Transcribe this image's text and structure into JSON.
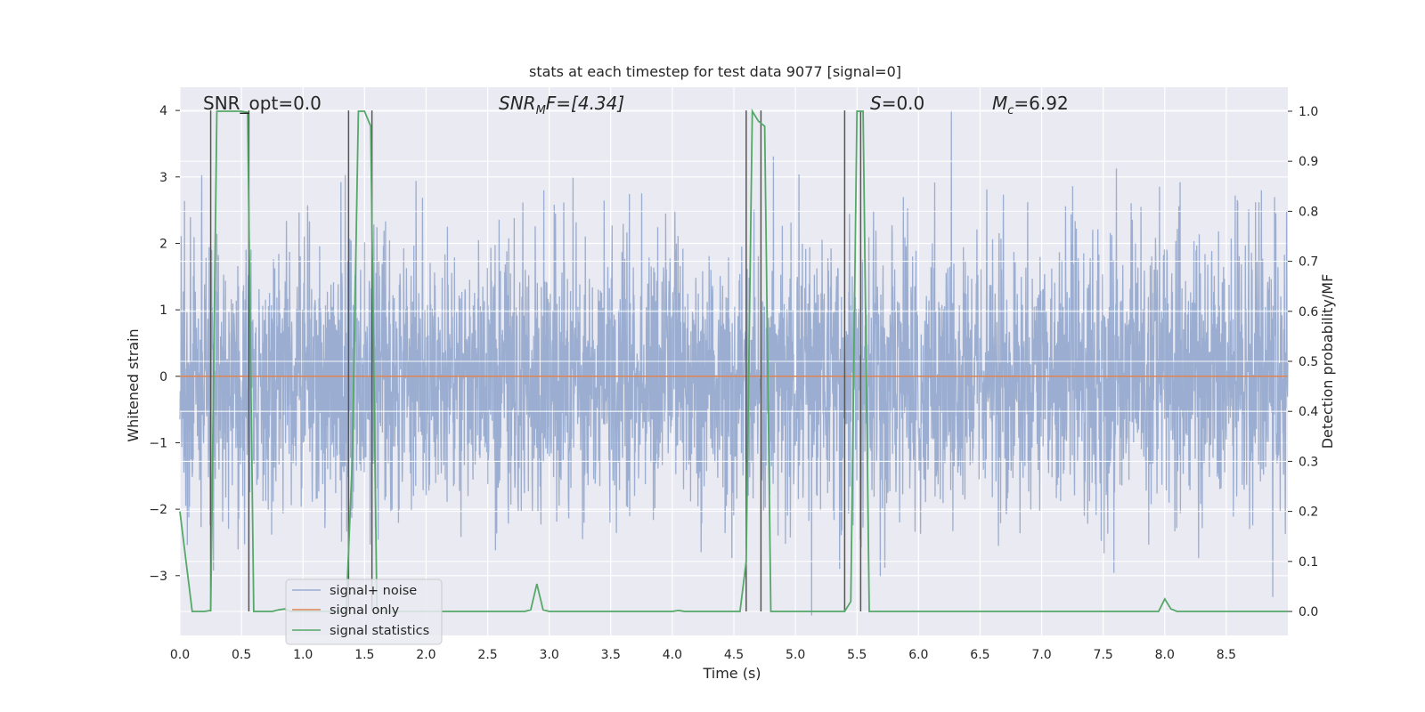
{
  "chart_data": {
    "type": "line",
    "title": "stats at each timestep for test data 9077 [signal=0]",
    "xlabel": "Time (s)",
    "ylabel": "Whitened strain",
    "y2label": "Detection probability/MF",
    "xlim": [
      0.0,
      9.0
    ],
    "ylim": [
      -3.9,
      4.35
    ],
    "y2lim": [
      -0.048,
      1.048
    ],
    "xticks": [
      "0.0",
      "0.5",
      "1.0",
      "1.5",
      "2.0",
      "2.5",
      "3.0",
      "3.5",
      "4.0",
      "4.5",
      "5.0",
      "5.5",
      "6.0",
      "6.5",
      "7.0",
      "7.5",
      "8.0",
      "8.5"
    ],
    "yticks": [
      "4",
      "3",
      "2",
      "1",
      "0",
      "−1",
      "−2",
      "−3"
    ],
    "y2ticks": [
      "1.0",
      "0.9",
      "0.8",
      "0.7",
      "0.6",
      "0.5",
      "0.4",
      "0.3",
      "0.2",
      "0.1",
      "0.0"
    ],
    "annotations": {
      "snr_opt": "SNR_opt=0.0",
      "snr_mf_base": "SNR",
      "snr_mf_sub": "M",
      "snr_mf_tail": "F=[4.34]",
      "s_base": "S",
      "s_tail": "=0.0",
      "mc_base": "M",
      "mc_sub": "c",
      "mc_tail": "=6.92"
    },
    "legend": {
      "position": "lower-left",
      "entries": [
        "signal+ noise",
        "signal only",
        "signal statistics"
      ]
    },
    "colors": {
      "noise": "#4c72b0",
      "signal": "#dd8452",
      "stats": "#55a868",
      "vlines": "#555555",
      "background": "#eaeaf2"
    },
    "series": [
      {
        "name": "signal+ noise",
        "description": "dense whitened strain noise, roughly uniform amplitude, peaks near ±3.5",
        "amplitude_std": 1.05,
        "peak_max": 4.0,
        "peak_min": -3.6
      },
      {
        "name": "signal only",
        "x": [
          0.0,
          9.0
        ],
        "y": [
          0.0,
          0.0
        ]
      },
      {
        "name": "signal statistics",
        "axis": "right",
        "x": [
          0.0,
          0.05,
          0.1,
          0.15,
          0.2,
          0.25,
          0.3,
          0.35,
          0.4,
          0.45,
          0.5,
          0.55,
          0.6,
          0.65,
          0.7,
          0.75,
          0.8,
          0.85,
          0.9,
          0.95,
          1.0,
          1.1,
          1.2,
          1.3,
          1.35,
          1.4,
          1.45,
          1.5,
          1.55,
          1.6,
          1.65,
          1.7,
          1.8,
          2.0,
          2.5,
          2.8,
          2.85,
          2.9,
          2.95,
          3.0,
          3.05,
          3.5,
          4.0,
          4.05,
          4.1,
          4.5,
          4.55,
          4.6,
          4.65,
          4.7,
          4.75,
          4.8,
          4.85,
          5.0,
          5.4,
          5.45,
          5.5,
          5.55,
          5.6,
          5.65,
          5.7,
          6.0,
          7.0,
          7.9,
          7.95,
          8.0,
          8.05,
          8.1,
          8.5,
          9.0
        ],
        "y": [
          0.2,
          0.1,
          0.0,
          0.0,
          0.0,
          0.002,
          1.0,
          1.0,
          1.0,
          1.0,
          1.0,
          0.998,
          0.0,
          0.0,
          0.0,
          0.0,
          0.003,
          0.005,
          0.0,
          0.0,
          0.0,
          0.0,
          0.0,
          0.0,
          0.0,
          0.3,
          1.0,
          1.0,
          0.97,
          0.0,
          0.0,
          0.0,
          0.0,
          0.0,
          0.0,
          0.0,
          0.003,
          0.055,
          0.003,
          0.0,
          0.0,
          0.0,
          0.0,
          0.002,
          0.0,
          0.0,
          0.0,
          0.1,
          1.0,
          0.98,
          0.97,
          0.0,
          0.0,
          0.0,
          0.0,
          0.02,
          1.0,
          1.0,
          0.0,
          0.0,
          0.0,
          0.0,
          0.0,
          0.0,
          0.0,
          0.025,
          0.005,
          0.0,
          0.0,
          0.0
        ]
      }
    ],
    "vlines_x": [
      0.25,
      0.56,
      1.37,
      1.56,
      4.6,
      4.72,
      5.4,
      5.53
    ]
  }
}
